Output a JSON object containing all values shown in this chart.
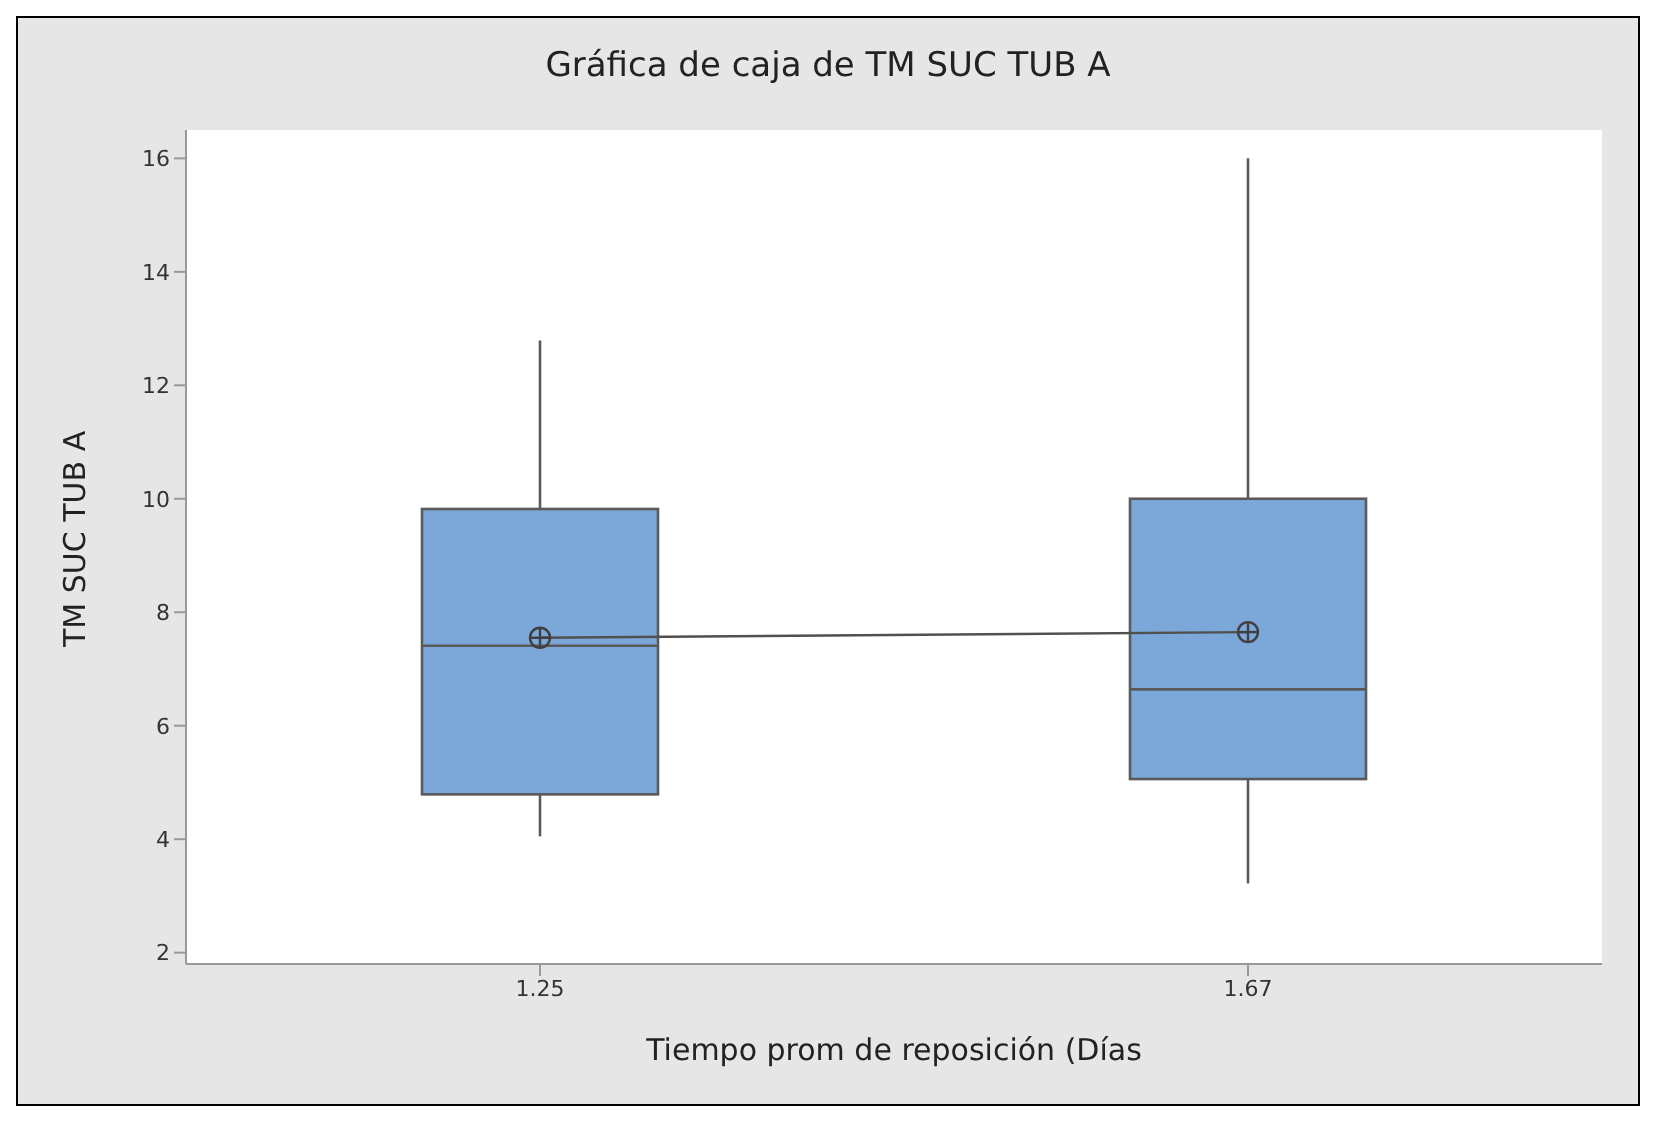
{
  "chart_data": {
    "type": "box",
    "title": "Gráfica de caja de TM SUC TUB A",
    "xlabel": "Tiempo prom de reposición (Días",
    "ylabel": "TM SUC TUB A",
    "categories": [
      "1.25",
      "1.67"
    ],
    "series": [
      {
        "color": "#7ba7d9",
        "boxes": [
          {
            "low": 4.05,
            "q1": 4.79,
            "median": 7.41,
            "q3": 9.82,
            "high": 12.79,
            "mean": 7.55
          },
          {
            "low": 3.22,
            "q1": 5.06,
            "median": 6.64,
            "q3": 10.0,
            "high": 16.0,
            "mean": 7.65
          }
        ]
      },
      {
        "type": "line",
        "color": "#505050",
        "values": [
          7.55,
          7.65
        ],
        "marker": "none"
      }
    ],
    "ylim": [
      1.8,
      16.5
    ],
    "yticks": [
      2,
      4,
      6,
      8,
      10,
      12,
      14,
      16
    ],
    "grid": false,
    "legend": false
  }
}
